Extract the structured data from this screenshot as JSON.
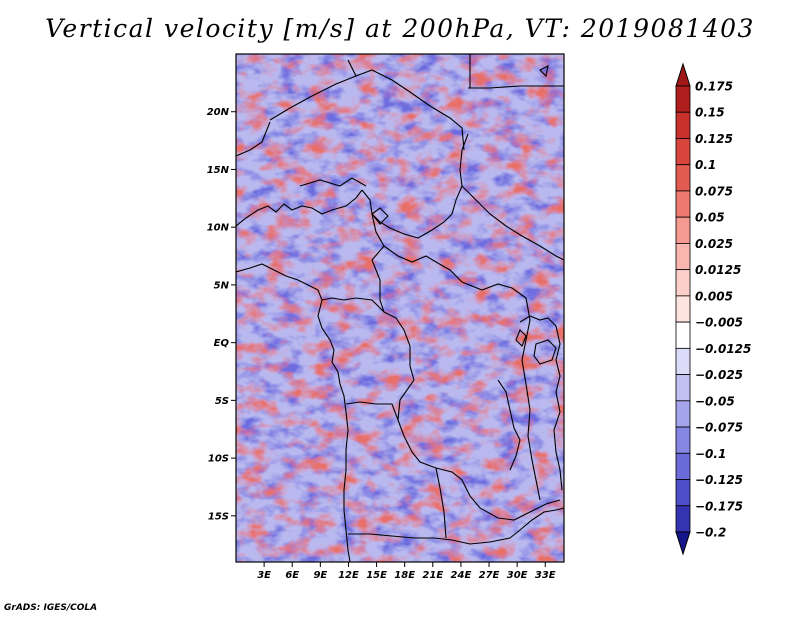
{
  "title": "Vertical velocity [m/s] at 200hPa, VT: 2019081403",
  "footer": "GrADS: IGES/COLA",
  "map": {
    "lon_range": [
      0,
      35
    ],
    "lat_range": [
      -19,
      25
    ],
    "lat_ticks": [
      {
        "value": 20,
        "label": "20N"
      },
      {
        "value": 15,
        "label": "15N"
      },
      {
        "value": 10,
        "label": "10N"
      },
      {
        "value": 5,
        "label": "5N"
      },
      {
        "value": 0,
        "label": "EQ"
      },
      {
        "value": -5,
        "label": "5S"
      },
      {
        "value": -10,
        "label": "10S"
      },
      {
        "value": -15,
        "label": "15S"
      }
    ],
    "lon_ticks": [
      {
        "value": 3,
        "label": "3E"
      },
      {
        "value": 6,
        "label": "6E"
      },
      {
        "value": 9,
        "label": "9E"
      },
      {
        "value": 12,
        "label": "12E"
      },
      {
        "value": 15,
        "label": "15E"
      },
      {
        "value": 18,
        "label": "18E"
      },
      {
        "value": 21,
        "label": "21E"
      },
      {
        "value": 24,
        "label": "24E"
      },
      {
        "value": 27,
        "label": "27E"
      },
      {
        "value": 30,
        "label": "30E"
      },
      {
        "value": 33,
        "label": "33E"
      }
    ]
  },
  "colorbar": {
    "levels": [
      {
        "label": "0.175",
        "color": "#b01e1e"
      },
      {
        "label": "0.15",
        "color": "#c8302c"
      },
      {
        "label": "0.125",
        "color": "#d8453c"
      },
      {
        "label": "0.1",
        "color": "#e35a50"
      },
      {
        "label": "0.075",
        "color": "#ec7a70"
      },
      {
        "label": "0.05",
        "color": "#f49a90"
      },
      {
        "label": "0.025",
        "color": "#f8b6ae"
      },
      {
        "label": "0.0125",
        "color": "#fbd0ca"
      },
      {
        "label": "0.005",
        "color": "#fde4e0"
      },
      {
        "label": "−0.005",
        "color": "#ffffff"
      },
      {
        "label": "−0.0125",
        "color": "#dcdcf8"
      },
      {
        "label": "−0.025",
        "color": "#c0c0f2"
      },
      {
        "label": "−0.05",
        "color": "#a4a4ec"
      },
      {
        "label": "−0.075",
        "color": "#8686e4"
      },
      {
        "label": "−0.1",
        "color": "#6a6ad8"
      },
      {
        "label": "−0.125",
        "color": "#4e4ec8"
      },
      {
        "label": "−0.175",
        "color": "#3434b0"
      },
      {
        "label": "−0.2",
        "color": "#20209a"
      }
    ],
    "top_color": "#a01818",
    "bottom_color": "#16168c"
  }
}
